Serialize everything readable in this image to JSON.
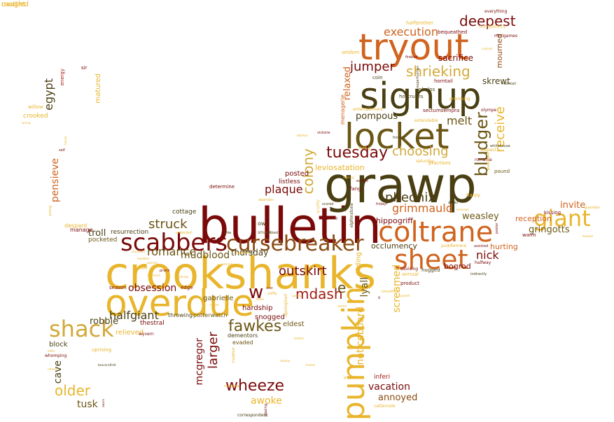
{
  "colors": {
    "gold": "#e8b52c",
    "orange": "#d0641e",
    "dark_olive": "#4a3f12",
    "olive": "#6b5614",
    "dark_red": "#7a0a0a",
    "red": "#a51a12",
    "tan": "#d3a93a",
    "light_gold": "#f0c65a",
    "brown": "#8a4b12"
  },
  "words": [
    {
      "text": "crookshanks",
      "color": "gold"
    },
    {
      "text": "bulletin",
      "color": "dark_red"
    },
    {
      "text": "grawp",
      "color": "dark_olive"
    },
    {
      "text": "overdue",
      "color": "gold"
    },
    {
      "text": "locket",
      "color": "olive"
    },
    {
      "text": "signup",
      "color": "dark_olive"
    },
    {
      "text": "tryout",
      "color": "orange"
    },
    {
      "text": "coltrane",
      "color": "orange"
    },
    {
      "text": "sheet",
      "color": "orange"
    },
    {
      "text": "scabbers",
      "color": "dark_red"
    },
    {
      "text": "cursebreaker",
      "color": "brown"
    },
    {
      "text": "shack",
      "color": "tan"
    },
    {
      "text": "pumpkin",
      "color": "gold"
    },
    {
      "text": "giant",
      "color": "gold"
    },
    {
      "text": "tuesday",
      "color": "dark_red"
    },
    {
      "text": "shrieking",
      "color": "tan"
    },
    {
      "text": "deepest",
      "color": "dark_red"
    },
    {
      "text": "jumper",
      "color": "dark_red"
    },
    {
      "text": "choosing",
      "color": "tan"
    },
    {
      "text": "bludger",
      "color": "olive"
    },
    {
      "text": "wheeze",
      "color": "dark_red"
    },
    {
      "text": "pheonix",
      "color": "dark_olive"
    },
    {
      "text": "fawkes",
      "color": "olive"
    },
    {
      "text": "mdash",
      "color": "red"
    },
    {
      "text": "older",
      "color": "gold"
    },
    {
      "text": "struck",
      "color": "olive"
    },
    {
      "text": "colony",
      "color": "tan"
    },
    {
      "text": "receive",
      "color": "gold"
    },
    {
      "text": "execution",
      "color": "orange"
    },
    {
      "text": "grimmauld",
      "color": "orange"
    },
    {
      "text": "romance",
      "color": "olive"
    },
    {
      "text": "outskirt",
      "color": "dark_red"
    },
    {
      "text": "larger",
      "color": "dark_red"
    },
    {
      "text": "halfgiant",
      "color": "dark_olive"
    },
    {
      "text": "egypt",
      "color": "dark_olive"
    },
    {
      "text": "pensieve",
      "color": "orange"
    },
    {
      "text": "plaque",
      "color": "dark_red"
    },
    {
      "text": "mudblood",
      "color": "olive"
    },
    {
      "text": "obsession",
      "color": "dark_red"
    },
    {
      "text": "melt",
      "color": "olive"
    },
    {
      "text": "nick",
      "color": "dark_red"
    },
    {
      "text": "gringotts",
      "color": "olive"
    },
    {
      "text": "invite",
      "color": "orange"
    },
    {
      "text": "w",
      "color": "dark_red"
    },
    {
      "text": "e",
      "color": "olive"
    },
    {
      "text": "screamed",
      "color": "gold"
    },
    {
      "text": "lyall",
      "color": "olive"
    },
    {
      "text": "noticeboard",
      "color": "gold"
    },
    {
      "text": "vacation",
      "color": "dark_red"
    },
    {
      "text": "annoyed",
      "color": "brown"
    },
    {
      "text": "awoke",
      "color": "gold"
    },
    {
      "text": "tusk",
      "color": "olive"
    },
    {
      "text": "cave",
      "color": "dark_olive"
    },
    {
      "text": "mcgregor",
      "color": "dark_red"
    },
    {
      "text": "relaxed",
      "color": "orange"
    },
    {
      "text": "pompous",
      "color": "dark_olive"
    },
    {
      "text": "sacrifice",
      "color": "dark_red"
    },
    {
      "text": "skrewt",
      "color": "dark_olive"
    },
    {
      "text": "weasley",
      "color": "olive"
    },
    {
      "text": "robbie",
      "color": "dark_olive"
    },
    {
      "text": "troll",
      "color": "dark_olive"
    },
    {
      "text": "thursday",
      "color": "dark_olive"
    },
    {
      "text": "occlumency",
      "color": "dark_olive"
    },
    {
      "text": "reception",
      "color": "orange"
    },
    {
      "text": "hurting",
      "color": "orange"
    },
    {
      "text": "bogrod",
      "color": "dark_red"
    },
    {
      "text": "mourned",
      "color": "brown"
    },
    {
      "text": "leviosatation",
      "color": "gold"
    },
    {
      "text": "hippogriff",
      "color": "dark_red"
    },
    {
      "text": "posted",
      "color": "dark_red"
    },
    {
      "text": "listless",
      "color": "dark_red"
    },
    {
      "text": "eldest",
      "color": "olive"
    },
    {
      "text": "gabrielle",
      "color": "olive"
    },
    {
      "text": "gliding",
      "color": "gold"
    },
    {
      "text": "hardship",
      "color": "dark_red"
    },
    {
      "text": "snogged",
      "color": "dark_red"
    },
    {
      "text": "thestral",
      "color": "dark_red"
    },
    {
      "text": "relieved",
      "color": "gold"
    },
    {
      "text": "block",
      "color": "dark_olive"
    },
    {
      "text": "matured",
      "color": "gold"
    },
    {
      "text": "crooked",
      "color": "gold"
    },
    {
      "text": "resurrection",
      "color": "dark_olive"
    },
    {
      "text": "cottage",
      "color": "dark_olive"
    },
    {
      "text": "pocketed",
      "color": "olive"
    },
    {
      "text": "manage",
      "color": "dark_red"
    },
    {
      "text": "despard",
      "color": "gold"
    },
    {
      "text": "energy",
      "color": "red"
    },
    {
      "text": "sir",
      "color": "dark_red"
    },
    {
      "text": "willow",
      "color": "gold"
    },
    {
      "text": "throwing",
      "color": "dark_olive"
    },
    {
      "text": "potterwatch",
      "color": "olive"
    },
    {
      "text": "dementors",
      "color": "dark_olive"
    },
    {
      "text": "evaded",
      "color": "olive"
    },
    {
      "text": "uprising",
      "color": "gold"
    },
    {
      "text": "whomping",
      "color": "dark_red"
    },
    {
      "text": "edge",
      "color": "dark_red"
    },
    {
      "text": "season",
      "color": "dark_red"
    },
    {
      "text": "determine",
      "color": "dark_red"
    },
    {
      "text": "owl",
      "color": "dark_olive"
    },
    {
      "text": "smash",
      "color": "olive"
    },
    {
      "text": "seldom",
      "color": "gold"
    },
    {
      "text": "coin",
      "color": "dark_olive"
    },
    {
      "text": "horcruxes",
      "color": "dark_olive"
    },
    {
      "text": "phelps",
      "color": "dark_olive"
    },
    {
      "text": "horntail",
      "color": "dark_red"
    },
    {
      "text": "halfbrother",
      "color": "gold"
    },
    {
      "text": "bequeathed",
      "color": "dark_red"
    },
    {
      "text": "complexity",
      "color": "light_gold"
    },
    {
      "text": "everything",
      "color": "dark_red"
    },
    {
      "text": "minigames",
      "color": "dark_red"
    },
    {
      "text": "sectumsempra",
      "color": "dark_red"
    },
    {
      "text": "entertainment",
      "color": "gold"
    },
    {
      "text": "extendable",
      "color": "gold"
    },
    {
      "text": "promising",
      "color": "gold"
    },
    {
      "text": "olympe",
      "color": "dark_red"
    },
    {
      "text": "menagerie",
      "color": "orange"
    },
    {
      "text": "fang",
      "color": "dark_red"
    },
    {
      "text": "romania",
      "color": "dark_red"
    },
    {
      "text": "pound",
      "color": "olive"
    },
    {
      "text": "practises",
      "color": "gold"
    },
    {
      "text": "saturday",
      "color": "gold"
    },
    {
      "text": "victoire",
      "color": "dark_red"
    },
    {
      "text": "avail",
      "color": "dark_olive"
    },
    {
      "text": "quality",
      "color": "light_gold"
    },
    {
      "text": "elphinstone",
      "color": "dark_olive"
    },
    {
      "text": "harpy",
      "color": "gold"
    },
    {
      "text": "kissing",
      "color": "dark_red"
    },
    {
      "text": "warm",
      "color": "dark_red"
    },
    {
      "text": "hugged",
      "color": "dark_olive"
    },
    {
      "text": "advising",
      "color": "dark_red"
    },
    {
      "text": "halfway",
      "color": "dark_red"
    },
    {
      "text": "puddlemere",
      "color": "gold"
    },
    {
      "text": "annual",
      "color": "gold"
    },
    {
      "text": "product",
      "color": "dark_red"
    },
    {
      "text": "apologised",
      "color": "gold"
    },
    {
      "text": "inferi",
      "color": "red"
    },
    {
      "text": "catternole",
      "color": "gold"
    },
    {
      "text": "s",
      "color": "dark_red"
    },
    {
      "text": "abandon",
      "color": "gold"
    },
    {
      "text": "collected",
      "color": "gold"
    },
    {
      "text": "kicked",
      "color": "dark_olive"
    },
    {
      "text": "bike",
      "color": "dark_olive"
    },
    {
      "text": "lingering",
      "color": "dark_red"
    },
    {
      "text": "friday",
      "color": "dark_red"
    },
    {
      "text": "scored",
      "color": "dark_olive"
    },
    {
      "text": "exhibit",
      "color": "dark_red"
    },
    {
      "text": "prong",
      "color": "gold"
    },
    {
      "text": "prank",
      "color": "dark_red"
    },
    {
      "text": "correspondent",
      "color": "dark_olive"
    },
    {
      "text": "charging",
      "color": "gold"
    },
    {
      "text": "gryffindor",
      "color": "gold"
    },
    {
      "text": "meddled",
      "color": "gold"
    },
    {
      "text": "suspect",
      "color": "gold"
    },
    {
      "text": "guardian",
      "color": "gold"
    },
    {
      "text": "indirectly",
      "color": "dark_olive"
    },
    {
      "text": "assisted",
      "color": "dark_red"
    },
    {
      "text": "self",
      "color": "dark_red"
    },
    {
      "text": "wyvern",
      "color": "dark_red"
    },
    {
      "text": "firebolt",
      "color": "dark_red"
    },
    {
      "text": "foreign",
      "color": "dark_olive"
    },
    {
      "text": "morntail",
      "color": "dark_olive"
    },
    {
      "text": "blazing",
      "color": "dark_red"
    },
    {
      "text": "superhuman",
      "color": "dark_olive"
    },
    {
      "text": "smoothest",
      "color": "gold"
    },
    {
      "text": "spring",
      "color": "gold"
    },
    {
      "text": "headless",
      "color": "gold"
    },
    {
      "text": "sworn",
      "color": "dark_red"
    },
    {
      "text": "stalking",
      "color": "gold"
    },
    {
      "text": "shutting",
      "color": "gold"
    },
    {
      "text": "conceal",
      "color": "gold"
    },
    {
      "text": "dolohov",
      "color": "gold"
    },
    {
      "text": "favour",
      "color": "gold"
    },
    {
      "text": "leverage",
      "color": "gold"
    },
    {
      "text": "booked",
      "color": "gold"
    },
    {
      "text": "pocket",
      "color": "gold"
    },
    {
      "text": "whitehouse",
      "color": "dark_olive"
    },
    {
      "text": "poster",
      "color": "dark_red"
    },
    {
      "text": "weakened",
      "color": "gold"
    },
    {
      "text": "partway",
      "color": "dark_olive"
    },
    {
      "text": "stiffly",
      "color": "gold"
    },
    {
      "text": "poorly",
      "color": "gold"
    },
    {
      "text": "sorted",
      "color": "gold"
    },
    {
      "text": "swamp",
      "color": "gold"
    },
    {
      "text": "chosen",
      "color": "gold"
    },
    {
      "text": "leather",
      "color": "gold"
    },
    {
      "text": "enticing",
      "color": "gold"
    },
    {
      "text": "slant",
      "color": "dark_red"
    },
    {
      "text": "sided",
      "color": "gold"
    },
    {
      "text": "elder",
      "color": "gold"
    },
    {
      "text": "stumbled",
      "color": "gold"
    },
    {
      "text": "retreat",
      "color": "gold"
    },
    {
      "text": "timing",
      "color": "gold"
    },
    {
      "text": "warned",
      "color": "gold"
    },
    {
      "text": "panted",
      "color": "gold"
    },
    {
      "text": "ravine",
      "color": "gold"
    },
    {
      "text": "crowned",
      "color": "gold"
    },
    {
      "text": "remission",
      "color": "gold"
    },
    {
      "text": "beaconsfield",
      "color": "dark_olive"
    },
    {
      "text": "caught",
      "color": "gold"
    },
    {
      "text": "mottled",
      "color": "gold"
    }
  ]
}
